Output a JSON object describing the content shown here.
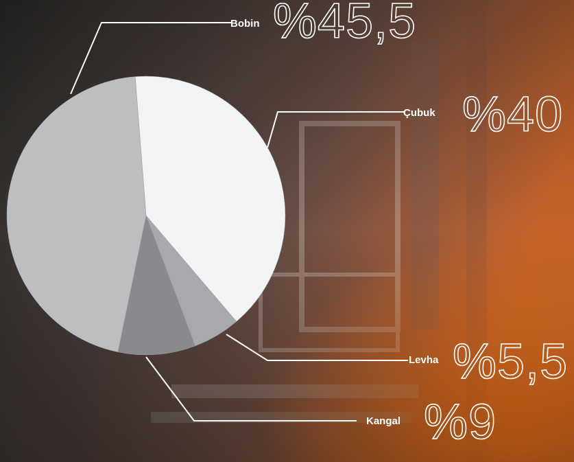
{
  "chart_data": {
    "type": "pie",
    "categories": [
      "Çubuk",
      "Levha",
      "Kangal",
      "Bobin"
    ],
    "values": [
      40,
      5.5,
      9,
      45.5
    ],
    "value_labels": [
      "%40",
      "%5,5",
      "%9",
      "%45,5"
    ],
    "colors": [
      "#f2f3f5",
      "#a7a9ac",
      "#898a8d",
      "#bcbec0"
    ]
  }
}
